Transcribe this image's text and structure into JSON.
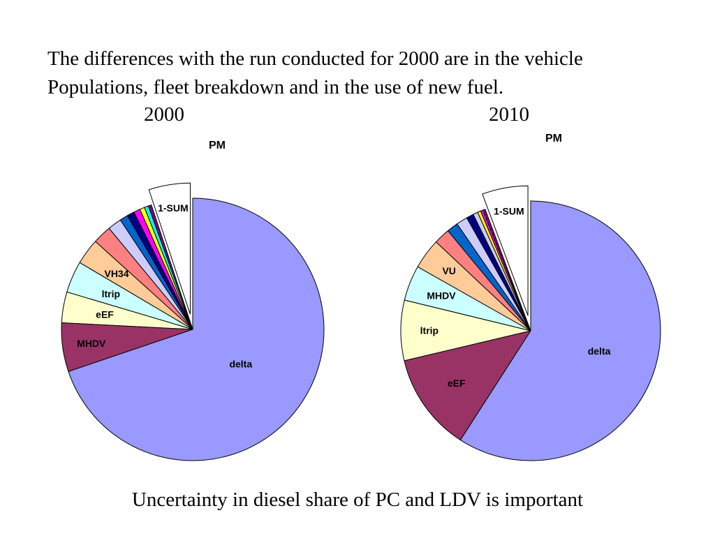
{
  "intro": {
    "line1": "The differences with the run conducted for 2000 are in the vehicle",
    "line2": "Populations, fleet breakdown and in the use of  new fuel."
  },
  "years": [
    "2000",
    "2010"
  ],
  "caption": "Uncertainty in diesel share of PC and LDV is important",
  "chart_data": [
    {
      "type": "pie",
      "title": "PM",
      "slices": [
        {
          "label": "delta",
          "value": 69.8,
          "color": "#9999ff"
        },
        {
          "label": "MHDV",
          "value": 6.0,
          "color": "#993366"
        },
        {
          "label": "eEF",
          "value": 3.8,
          "color": "#ffffcc"
        },
        {
          "label": "ltrip",
          "value": 3.9,
          "color": "#ccffff"
        },
        {
          "label": "VH34",
          "value": 3.2,
          "color": "#ffcc99"
        },
        {
          "label": "",
          "value": 2.3,
          "color": "#ff8080"
        },
        {
          "label": "",
          "value": 1.7,
          "color": "#ccccff"
        },
        {
          "label": "",
          "value": 1.0,
          "color": "#0066cc"
        },
        {
          "label": "",
          "value": 0.9,
          "color": "#000080"
        },
        {
          "label": "",
          "value": 0.8,
          "color": "#ff00ff"
        },
        {
          "label": "",
          "value": 0.6,
          "color": "#ffff00"
        },
        {
          "label": "",
          "value": 0.5,
          "color": "#00ffff"
        },
        {
          "label": "",
          "value": 0.4,
          "color": "#800080"
        },
        {
          "label": "1-SUM",
          "value": 5.1,
          "color": "#ffffff",
          "exploded": true
        }
      ]
    },
    {
      "type": "pie",
      "title": "PM",
      "slices": [
        {
          "label": "delta",
          "value": 59.1,
          "color": "#9999ff"
        },
        {
          "label": "eEF",
          "value": 12.2,
          "color": "#993366"
        },
        {
          "label": "ltrip",
          "value": 7.5,
          "color": "#ffffcc"
        },
        {
          "label": "MHDV",
          "value": 4.4,
          "color": "#ccffff"
        },
        {
          "label": "VU",
          "value": 3.8,
          "color": "#ffcc99"
        },
        {
          "label": "",
          "value": 2.0,
          "color": "#ff8080"
        },
        {
          "label": "",
          "value": 1.4,
          "color": "#0066cc"
        },
        {
          "label": "",
          "value": 1.4,
          "color": "#ccccff"
        },
        {
          "label": "",
          "value": 0.9,
          "color": "#000080"
        },
        {
          "label": "",
          "value": 0.6,
          "color": "#ccccff"
        },
        {
          "label": "",
          "value": 0.4,
          "color": "#ffff00"
        },
        {
          "label": "",
          "value": 0.3,
          "color": "#ff00ff"
        },
        {
          "label": "",
          "value": 0.3,
          "color": "#800080"
        },
        {
          "label": "1-SUM",
          "value": 5.7,
          "color": "#ffffff",
          "exploded": true
        }
      ]
    }
  ]
}
